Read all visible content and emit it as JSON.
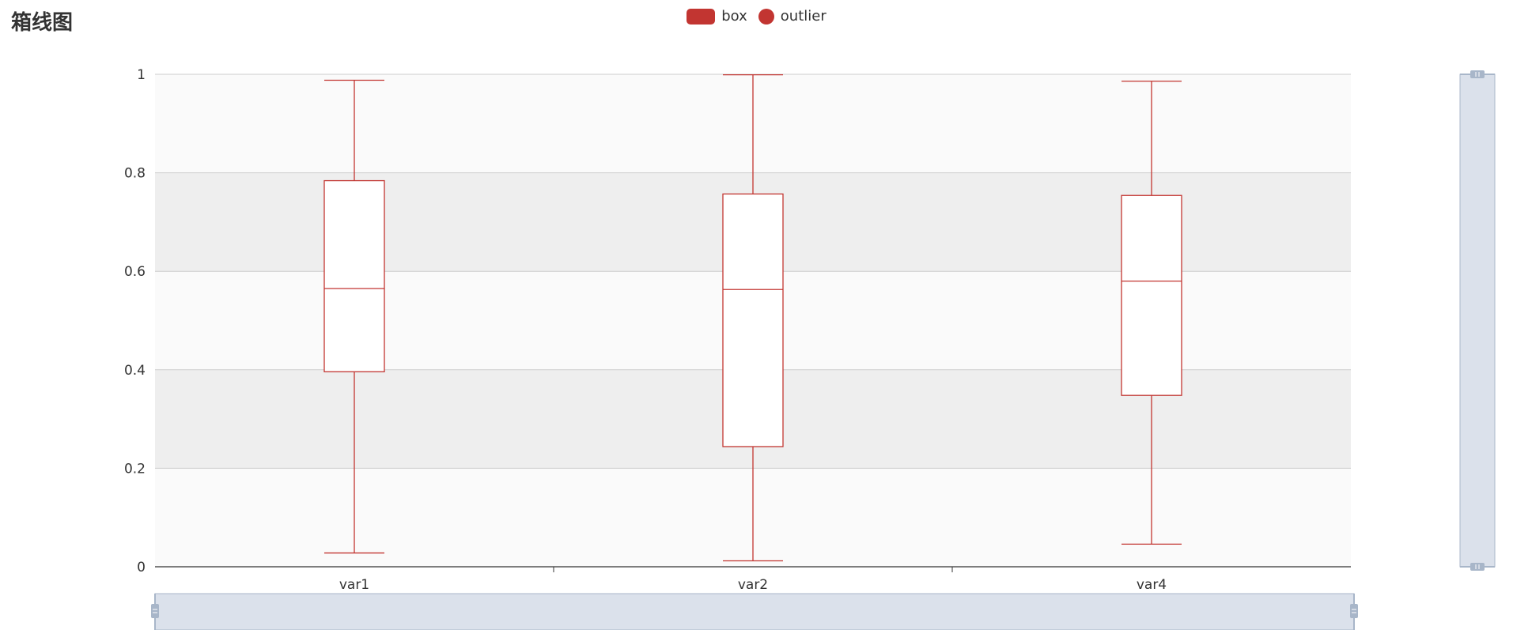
{
  "title": "箱线图",
  "legend": {
    "items": [
      {
        "label": "box",
        "shape": "rect"
      },
      {
        "label": "outlier",
        "shape": "circle"
      }
    ]
  },
  "colors": {
    "series": "#c23531",
    "grid_line": "#cccccc",
    "band_light": "#fafafa",
    "band_dark": "#eeeeee",
    "axis": "#333333",
    "zoom_fill": "#dbe1eb",
    "zoom_border": "#a8b6c9"
  },
  "chart_data": {
    "type": "boxplot",
    "categories": [
      "var1",
      "var2",
      "var4"
    ],
    "series": [
      {
        "name": "box",
        "values": [
          {
            "min": 0.028,
            "q1": 0.396,
            "median": 0.565,
            "q3": 0.784,
            "max": 0.988
          },
          {
            "min": 0.012,
            "q1": 0.244,
            "median": 0.563,
            "q3": 0.757,
            "max": 0.999
          },
          {
            "min": 0.046,
            "q1": 0.348,
            "median": 0.58,
            "q3": 0.754,
            "max": 0.986
          }
        ]
      },
      {
        "name": "outlier",
        "values": []
      }
    ],
    "ylim": [
      0,
      1
    ],
    "yticks": [
      0,
      0.2,
      0.4,
      0.6,
      0.8,
      1
    ],
    "ytick_labels": [
      "0",
      "0.2",
      "0.4",
      "0.6",
      "0.8",
      "1"
    ],
    "grid": true,
    "split_area": true,
    "legend_position": "top-center",
    "datazoom": {
      "x_range": [
        0,
        100
      ],
      "y_range": [
        0,
        100
      ]
    }
  }
}
